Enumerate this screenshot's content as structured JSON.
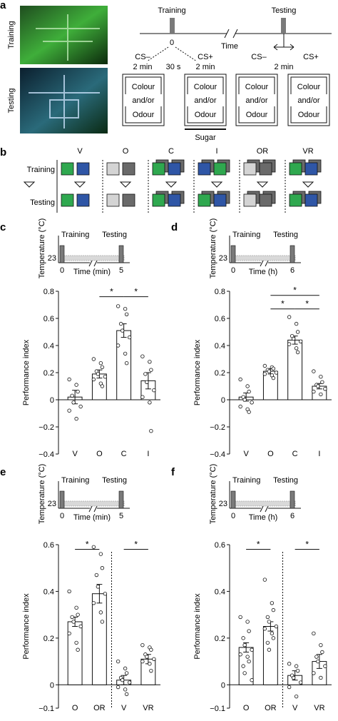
{
  "panel_letters": [
    "a",
    "b",
    "c",
    "d",
    "e",
    "f"
  ],
  "colors": {
    "green": "#2fa84f",
    "blue": "#2f56a6",
    "light_grey": "#d4d4d4",
    "dark_grey": "#6a6a6a",
    "bar_fill": "#ffffff",
    "baseline_band": "#d9d9d9",
    "pulse": "#7a7a7a"
  },
  "panel_a": {
    "photo_training_label": "Training",
    "photo_testing_label": "Testing",
    "timeline_training": "Training",
    "timeline_testing": "Testing",
    "zero_label": "0",
    "time_label": "Time",
    "cs_minus": "CS–",
    "cs_plus": "CS+",
    "two_min": "2 min",
    "thirty_s": "30 s",
    "box_line1": "Colour",
    "box_line2": "and/or",
    "box_line3": "Odour",
    "sugar_label": "Sugar"
  },
  "panel_b": {
    "row_training": "Training",
    "row_testing": "Testing",
    "columns": [
      {
        "label": "V",
        "training": [
          "green",
          "blue"
        ],
        "testing": [
          "green",
          "blue"
        ],
        "stacked": false
      },
      {
        "label": "O",
        "training": [
          "light_grey",
          "dark_grey"
        ],
        "testing": [
          "light_grey",
          "dark_grey"
        ],
        "stacked": false
      },
      {
        "label": "C",
        "training": [
          "green",
          "blue"
        ],
        "testing": [
          "green",
          "blue"
        ],
        "stacked": true
      },
      {
        "label": "I",
        "training": [
          "blue",
          "green"
        ],
        "testing": [
          "green",
          "blue"
        ],
        "stacked": true
      },
      {
        "label": "OR",
        "training": [
          "light_grey",
          "dark_grey"
        ],
        "testing": [
          "light_grey",
          "dark_grey"
        ],
        "stacked": true
      },
      {
        "label": "VR",
        "training": [
          "green",
          "blue"
        ],
        "testing": [
          "green",
          "blue"
        ],
        "stacked": true
      }
    ]
  },
  "chart_data": [
    {
      "panel": "c",
      "type": "bar",
      "inset": {
        "ylabel": "Temperature (°C)",
        "ytick": "23",
        "training_label": "Training",
        "testing_label": "Testing",
        "xticks": [
          "0",
          "5"
        ],
        "xlabel": "Time (min)"
      },
      "ylabel": "Performance index",
      "ylim": [
        -0.4,
        0.8
      ],
      "yticks": [
        -0.4,
        -0.2,
        0,
        0.2,
        0.4,
        0.6,
        0.8
      ],
      "yticklabels": [
        "−0.4",
        "−0.2",
        "0",
        "0.2",
        "0.4",
        "0.6",
        "0.8"
      ],
      "categories": [
        "V",
        "O",
        "C",
        "I"
      ],
      "values": [
        0.02,
        0.19,
        0.51,
        0.14
      ],
      "errors": [
        0.05,
        0.03,
        0.05,
        0.06
      ],
      "points": [
        [
          0.15,
          0.11,
          0.06,
          0.03,
          -0.02,
          -0.05,
          -0.08,
          -0.14
        ],
        [
          0.3,
          0.27,
          0.24,
          0.21,
          0.19,
          0.17,
          0.15,
          0.12,
          0.1
        ],
        [
          0.69,
          0.67,
          0.63,
          0.56,
          0.51,
          0.46,
          0.4,
          0.34,
          0.27
        ],
        [
          0.32,
          0.28,
          0.22,
          0.19,
          0.13,
          0.07,
          0.02,
          -0.02,
          -0.23
        ]
      ],
      "significance": [
        {
          "from": 1,
          "to": 2,
          "label": "*",
          "level": 0.76
        },
        {
          "from": 2,
          "to": 3,
          "label": "*",
          "level": 0.76
        }
      ]
    },
    {
      "panel": "d",
      "type": "bar",
      "inset": {
        "ylabel": "Temperature (°C)",
        "ytick": "23",
        "training_label": "Training",
        "testing_label": "Testing",
        "xticks": [
          "0",
          "6"
        ],
        "xlabel": "Time (h)"
      },
      "ylabel": "Performance index",
      "ylim": [
        -0.4,
        0.8
      ],
      "yticks": [
        -0.4,
        -0.2,
        0,
        0.2,
        0.4,
        0.6,
        0.8
      ],
      "yticklabels": [
        "−0.4",
        "−0.2",
        "0",
        "0.2",
        "0.4",
        "0.6",
        "0.8"
      ],
      "categories": [
        "V",
        "O",
        "C",
        "I"
      ],
      "values": [
        0.02,
        0.21,
        0.44,
        0.1
      ],
      "errors": [
        0.03,
        0.02,
        0.03,
        0.02
      ],
      "points": [
        [
          0.15,
          0.1,
          0.06,
          0.02,
          0.0,
          -0.02,
          -0.05,
          -0.07,
          -0.09
        ],
        [
          0.25,
          0.24,
          0.23,
          0.22,
          0.21,
          0.2,
          0.19,
          0.18,
          0.16
        ],
        [
          0.61,
          0.56,
          0.5,
          0.47,
          0.45,
          0.43,
          0.41,
          0.38,
          0.35
        ],
        [
          0.21,
          0.17,
          0.13,
          0.11,
          0.1,
          0.08,
          0.06,
          0.04
        ]
      ],
      "significance": [
        {
          "from": 1,
          "to": 3,
          "label": "*",
          "level": 0.77
        },
        {
          "from": 1,
          "to": 2,
          "label": "*",
          "level": 0.67
        },
        {
          "from": 2,
          "to": 3,
          "label": "*",
          "level": 0.67
        }
      ]
    },
    {
      "panel": "e",
      "type": "bar",
      "inset": {
        "ylabel": "Temperature (°C)",
        "ytick": "23",
        "training_label": "Training",
        "testing_label": "Testing",
        "xticks": [
          "0",
          "5"
        ],
        "xlabel": "Time (min)"
      },
      "ylabel": "Performance index",
      "ylim": [
        -0.1,
        0.6
      ],
      "yticks": [
        -0.1,
        0,
        0.2,
        0.4,
        0.6
      ],
      "yticklabels": [
        "−0.1",
        "0",
        "0.2",
        "0.4",
        "0.6"
      ],
      "categories": [
        "O",
        "OR",
        "V",
        "VR"
      ],
      "values": [
        0.27,
        0.39,
        0.02,
        0.11
      ],
      "errors": [
        0.02,
        0.04,
        0.02,
        0.02
      ],
      "points": [
        [
          0.4,
          0.33,
          0.3,
          0.29,
          0.27,
          0.25,
          0.22,
          0.18,
          0.15
        ],
        [
          0.59,
          0.56,
          0.5,
          0.47,
          0.42,
          0.39,
          0.35,
          0.31,
          0.27
        ],
        [
          0.1,
          0.07,
          0.05,
          0.03,
          0.02,
          0.01,
          -0.01,
          -0.02,
          -0.04
        ],
        [
          0.17,
          0.16,
          0.15,
          0.13,
          0.12,
          0.11,
          0.1,
          0.09,
          0.06
        ]
      ],
      "significance": [
        {
          "from": 0,
          "to": 1,
          "label": "*",
          "level": 0.58
        },
        {
          "from": 2,
          "to": 3,
          "label": "*",
          "level": 0.58
        }
      ],
      "divider_after": 1
    },
    {
      "panel": "f",
      "type": "bar",
      "inset": {
        "ylabel": "Temperature (°C)",
        "ytick": "23",
        "training_label": "Training",
        "testing_label": "Testing",
        "xticks": [
          "0",
          "6"
        ],
        "xlabel": "Time (h)"
      },
      "ylabel": "Performance index",
      "ylim": [
        -0.1,
        0.6
      ],
      "yticks": [
        -0.1,
        0,
        0.2,
        0.4,
        0.6
      ],
      "yticklabels": [
        "−0.1",
        "0",
        "0.2",
        "0.4",
        "0.6"
      ],
      "categories": [
        "O",
        "OR",
        "V",
        "VR"
      ],
      "values": [
        0.16,
        0.25,
        0.04,
        0.1
      ],
      "errors": [
        0.02,
        0.02,
        0.02,
        0.03
      ],
      "points": [
        [
          0.29,
          0.27,
          0.23,
          0.2,
          0.17,
          0.15,
          0.13,
          0.12,
          0.1,
          0.08,
          0.05,
          0.02
        ],
        [
          0.45,
          0.35,
          0.32,
          0.29,
          0.27,
          0.25,
          0.24,
          0.22,
          0.2,
          0.18,
          0.15
        ],
        [
          0.09,
          0.08,
          0.06,
          0.04,
          0.03,
          0.01,
          -0.01,
          -0.05
        ],
        [
          0.22,
          0.17,
          0.14,
          0.12,
          0.1,
          0.08,
          0.05,
          0.03
        ]
      ],
      "significance": [
        {
          "from": 0,
          "to": 1,
          "label": "*",
          "level": 0.58
        },
        {
          "from": 2,
          "to": 3,
          "label": "*",
          "level": 0.58
        }
      ],
      "divider_after": 1
    }
  ]
}
